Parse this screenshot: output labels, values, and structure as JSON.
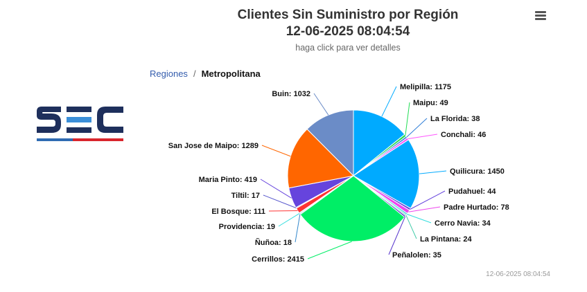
{
  "chart_data": {
    "type": "pie",
    "title": "Clientes Sin Suministro por Región",
    "title_timestamp": "12-06-2025 08:04:54",
    "subtitle": "haga click para ver detalles",
    "breadcrumb": {
      "root": "Regiones",
      "separator": "/",
      "current": "Metropolitana"
    },
    "footer_timestamp": "12-06-2025 08:04:54",
    "slices": [
      {
        "name": "Melipilla",
        "value": 1175,
        "color": "#00aaff",
        "label": "Melipilla: 1175"
      },
      {
        "name": "Maipu",
        "value": 49,
        "color": "#22dd55",
        "label": "Maipu: 49"
      },
      {
        "name": "La Florida",
        "value": 38,
        "color": "#2f7ed8",
        "label": "La Florida: 38"
      },
      {
        "name": "Conchali",
        "value": 46,
        "color": "#ff55ff",
        "label": "Conchali: 46"
      },
      {
        "name": "Quilicura",
        "value": 1450,
        "color": "#00aaff",
        "label": "Quilicura: 1450"
      },
      {
        "name": "Pudahuel",
        "value": 44,
        "color": "#6644dd",
        "label": "Pudahuel: 44"
      },
      {
        "name": "Padre Hurtado",
        "value": 78,
        "color": "#ee44ee",
        "label": "Padre Hurtado: 78"
      },
      {
        "name": "Cerro Navia",
        "value": 34,
        "color": "#33dddd",
        "label": "Cerro Navia: 34"
      },
      {
        "name": "La Pintana",
        "value": 24,
        "color": "#44ccaa",
        "label": "La Pintana: 24"
      },
      {
        "name": "Peñalolen",
        "value": 35,
        "color": "#5533cc",
        "label": "Peñalolen: 35"
      },
      {
        "name": "Cerrillos",
        "value": 2415,
        "color": "#00ee66",
        "label": "Cerrillos: 2415"
      },
      {
        "name": "Ñuñoa",
        "value": 18,
        "color": "#3388cc",
        "label": "Ñuñoa: 18"
      },
      {
        "name": "Providencia",
        "value": 19,
        "color": "#33dddd",
        "label": "Providencia: 19"
      },
      {
        "name": "El Bosque",
        "value": 111,
        "color": "#ff3333",
        "label": "El Bosque: 111"
      },
      {
        "name": "Tiltil",
        "value": 17,
        "color": "#5555cc",
        "label": "Tiltil: 17"
      },
      {
        "name": "Maria Pinto",
        "value": 419,
        "color": "#6644dd",
        "label": "Maria Pinto: 419"
      },
      {
        "name": "San Jose de Maipo",
        "value": 1289,
        "color": "#ff6600",
        "label": "San Jose de Maipo: 1289"
      },
      {
        "name": "Buin",
        "value": 1032,
        "color": "#6b8cc7",
        "label": "Buin: 1032"
      }
    ]
  },
  "logo": {
    "brand_colors": [
      "#1e2f5c",
      "#3b8fd9",
      "#d9252c"
    ]
  },
  "menu": {
    "icon": "hamburger-icon"
  }
}
